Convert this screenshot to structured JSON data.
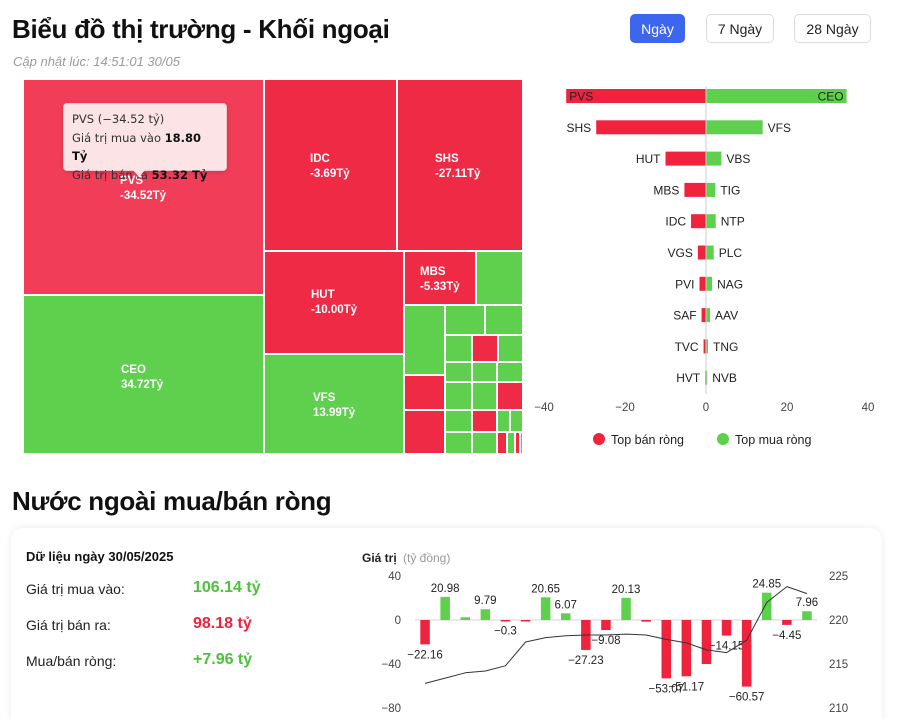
{
  "header": {
    "title": "Biểu đồ thị trường - Khối ngoại",
    "updated": "Cập nhật lúc: 14:51:01 30/05",
    "tabs": [
      "Ngày",
      "7 Ngày",
      "28 Ngày"
    ],
    "active_tab": "Ngày"
  },
  "treemap": {
    "tiles": [
      {
        "name": "PVS",
        "value": "-34.52Tỷ"
      },
      {
        "name": "IDC",
        "value": "-3.69Tỷ"
      },
      {
        "name": "SHS",
        "value": "-27.11Tỷ"
      },
      {
        "name": "HUT",
        "value": "-10.00Tỷ"
      },
      {
        "name": "MBS",
        "value": "-5.33Tỷ"
      },
      {
        "name": "CEO",
        "value": "34.72Tỷ"
      },
      {
        "name": "VFS",
        "value": "13.99Tỷ"
      }
    ],
    "tooltip": {
      "title": "PVS (−34.52 tỷ)",
      "buy_label": "Giá trị mua vào",
      "buy_value": "18.80 Tỷ",
      "sell_label": "Giá trị bán ra",
      "sell_value": "53.32 Tỷ"
    }
  },
  "colors": {
    "sell": "#f0233f",
    "buy": "#5fd04d",
    "accent": "#3c66ee",
    "line": "#333333"
  },
  "chart_data": [
    {
      "type": "bar",
      "orientation": "horizontal",
      "sell_series": {
        "name": "Top bán ròng",
        "categories": [
          "PVS",
          "SHS",
          "HUT",
          "MBS",
          "IDC",
          "VGS",
          "PVI",
          "SAF",
          "TVC",
          "HVT"
        ],
        "values": [
          -34.52,
          -27.11,
          -10.0,
          -5.33,
          -3.69,
          -2.0,
          -1.6,
          -1.1,
          -0.6,
          -0.2
        ]
      },
      "buy_series": {
        "name": "Top mua ròng",
        "categories": [
          "CEO",
          "VFS",
          "VBS",
          "TIG",
          "NTP",
          "PLC",
          "NAG",
          "AAV",
          "TNG",
          "NVB"
        ],
        "values": [
          34.72,
          13.99,
          3.8,
          2.3,
          2.4,
          1.9,
          1.5,
          1.0,
          0.5,
          0.3
        ]
      },
      "xlim": [
        -40,
        40
      ],
      "xticks": [
        -40,
        -20,
        0,
        20,
        40
      ],
      "legend": [
        "Top bán ròng",
        "Top mua ròng"
      ]
    },
    {
      "type": "bar",
      "ylabel": "Giá trị",
      "ylabel_unit": "(tỷ đồng)",
      "ylim": [
        -80,
        40
      ],
      "yticks": [
        40,
        0,
        -40,
        -80
      ],
      "y2ticks": [
        225,
        220,
        215,
        210
      ],
      "y2lim": [
        210,
        225
      ],
      "values": [
        -22.16,
        20.98,
        2.5,
        9.79,
        -0.3,
        -1.0,
        20.65,
        6.07,
        -27.23,
        -9.08,
        20.13,
        -1.5,
        -53.07,
        -51.17,
        -40.0,
        -14.15,
        -60.57,
        24.85,
        -4.45,
        7.96
      ],
      "value_labels": [
        "-22.16",
        "20.98",
        "",
        "9.79",
        "-0.3",
        "",
        "20.65",
        "6.07",
        "-27.23",
        "-9.08",
        "20.13",
        "",
        "-53.07",
        "-51.17",
        "",
        "-14.15",
        "-60.57",
        "24.85",
        "-4.45",
        "7.96"
      ],
      "line": [
        212.8,
        213.4,
        214.0,
        214.2,
        214.8,
        217.5,
        218.0,
        218.2,
        218.3,
        218.3,
        218.4,
        218.3,
        217.8,
        217.4,
        216.6,
        216.3,
        217.7,
        222.0,
        223.8,
        223.0
      ]
    }
  ],
  "summary": {
    "date_label": "Dữ liệu ngày 30/05/2025",
    "rows": [
      {
        "label": "Giá trị mua vào:",
        "value": "106.14 tỷ"
      },
      {
        "label": "Giá trị bán ra:",
        "value": "98.18 tỷ"
      },
      {
        "label": "Mua/bán ròng:",
        "value": "+7.96 tỷ"
      }
    ]
  },
  "section_title": "Nước ngoài mua/bán ròng"
}
